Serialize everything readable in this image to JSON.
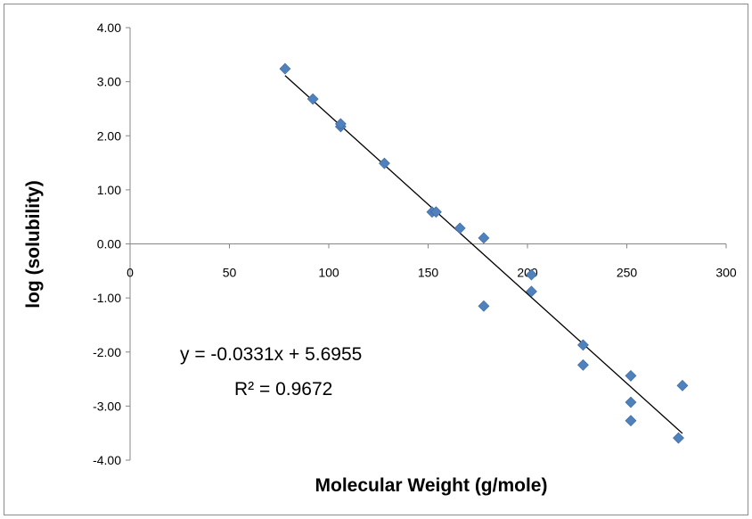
{
  "chart_data": {
    "type": "scatter",
    "title": "",
    "xlabel": "Molecular Weight (g/mole)",
    "ylabel": "log (solubility)",
    "xlim": [
      0,
      300
    ],
    "ylim": [
      -4,
      4
    ],
    "x_ticks": [
      "0",
      "50",
      "100",
      "150",
      "200",
      "250",
      "300"
    ],
    "y_ticks": [
      "4.00",
      "3.00",
      "2.00",
      "1.00",
      "0.00",
      "-1.00",
      "-2.00",
      "-3.00",
      "-4.00"
    ],
    "grid": false,
    "legend": "none",
    "marker_color": "#4F81BD",
    "trendline_color": "#000000",
    "series": [
      {
        "points": [
          {
            "x": 78,
            "y": 3.24
          },
          {
            "x": 92,
            "y": 2.68
          },
          {
            "x": 106,
            "y": 2.17
          },
          {
            "x": 106,
            "y": 2.22
          },
          {
            "x": 128,
            "y": 1.49
          },
          {
            "x": 152,
            "y": 0.59
          },
          {
            "x": 154,
            "y": 0.59
          },
          {
            "x": 166,
            "y": 0.29
          },
          {
            "x": 178,
            "y": 0.11
          },
          {
            "x": 178,
            "y": -1.15
          },
          {
            "x": 202,
            "y": -0.57
          },
          {
            "x": 202,
            "y": -0.88
          },
          {
            "x": 228,
            "y": -1.87
          },
          {
            "x": 228,
            "y": -2.24
          },
          {
            "x": 252,
            "y": -2.44
          },
          {
            "x": 252,
            "y": -2.93
          },
          {
            "x": 252,
            "y": -3.27
          },
          {
            "x": 276,
            "y": -3.59
          },
          {
            "x": 278,
            "y": -2.62
          }
        ]
      }
    ],
    "trendline": {
      "slope": -0.0331,
      "intercept": 5.6955,
      "x_range": [
        78,
        278
      ],
      "equation_text": "y = -0.0331x + 5.6955",
      "r2_text": "R² = 0.9672"
    }
  }
}
